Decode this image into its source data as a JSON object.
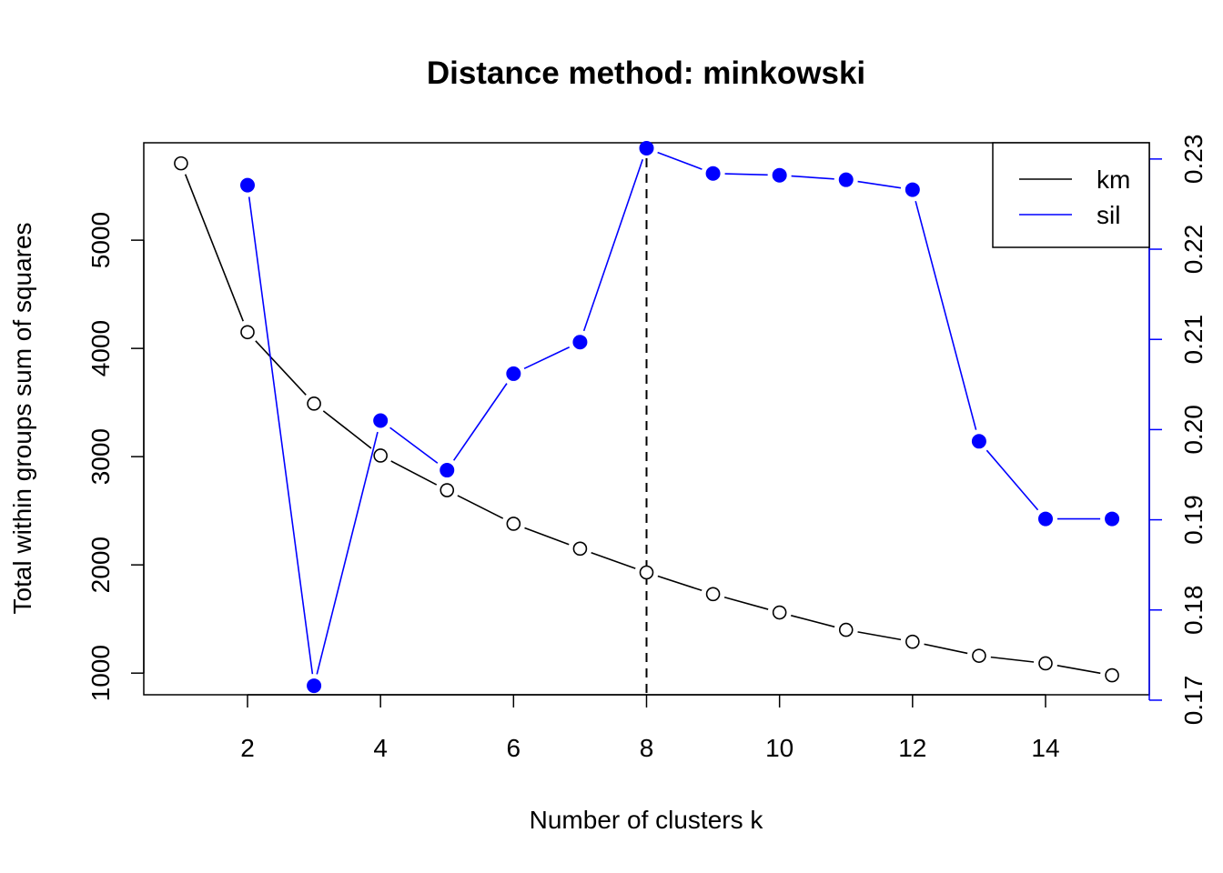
{
  "chart_data": {
    "type": "line",
    "title": "Distance method: minkowski",
    "xlabel": "Number of clusters k",
    "ylabel": "Total within groups sum of squares",
    "xlim": [
      0.44,
      15.56
    ],
    "xticks": [
      2,
      4,
      6,
      8,
      10,
      12,
      14
    ],
    "ylim_left": [
      800,
      5900
    ],
    "yticks_left": [
      1000,
      2000,
      3000,
      4000,
      5000
    ],
    "ylim_right": [
      0.1706,
      0.2318
    ],
    "yticks_right": [
      0.17,
      0.18,
      0.19,
      0.2,
      0.21,
      0.22,
      0.23
    ],
    "yticks_right_labels": [
      "0.17",
      "0.18",
      "0.19",
      "0.20",
      "0.21",
      "0.22",
      "0.23"
    ],
    "vline_x": 8,
    "grid": false,
    "legend_position": "top-right",
    "colors": {
      "km": "#000000",
      "sil": "#0000ff"
    },
    "series": [
      {
        "name": "km",
        "axis": "left",
        "marker": "open-circle",
        "x": [
          1,
          2,
          3,
          4,
          5,
          6,
          7,
          8,
          9,
          10,
          11,
          12,
          13,
          14,
          15
        ],
        "values": [
          5710,
          4150,
          3490,
          3010,
          2690,
          2380,
          2150,
          1930,
          1730,
          1560,
          1400,
          1290,
          1160,
          1090,
          980
        ]
      },
      {
        "name": "sil",
        "axis": "right",
        "marker": "filled-circle",
        "x": [
          2,
          3,
          4,
          5,
          6,
          7,
          8,
          9,
          10,
          11,
          12,
          13,
          14,
          15
        ],
        "values": [
          0.2271,
          0.1716,
          0.201,
          0.1955,
          0.2062,
          0.2097,
          0.2312,
          0.2284,
          0.2282,
          0.2277,
          0.2266,
          0.1987,
          0.1901,
          0.1901
        ]
      }
    ]
  }
}
